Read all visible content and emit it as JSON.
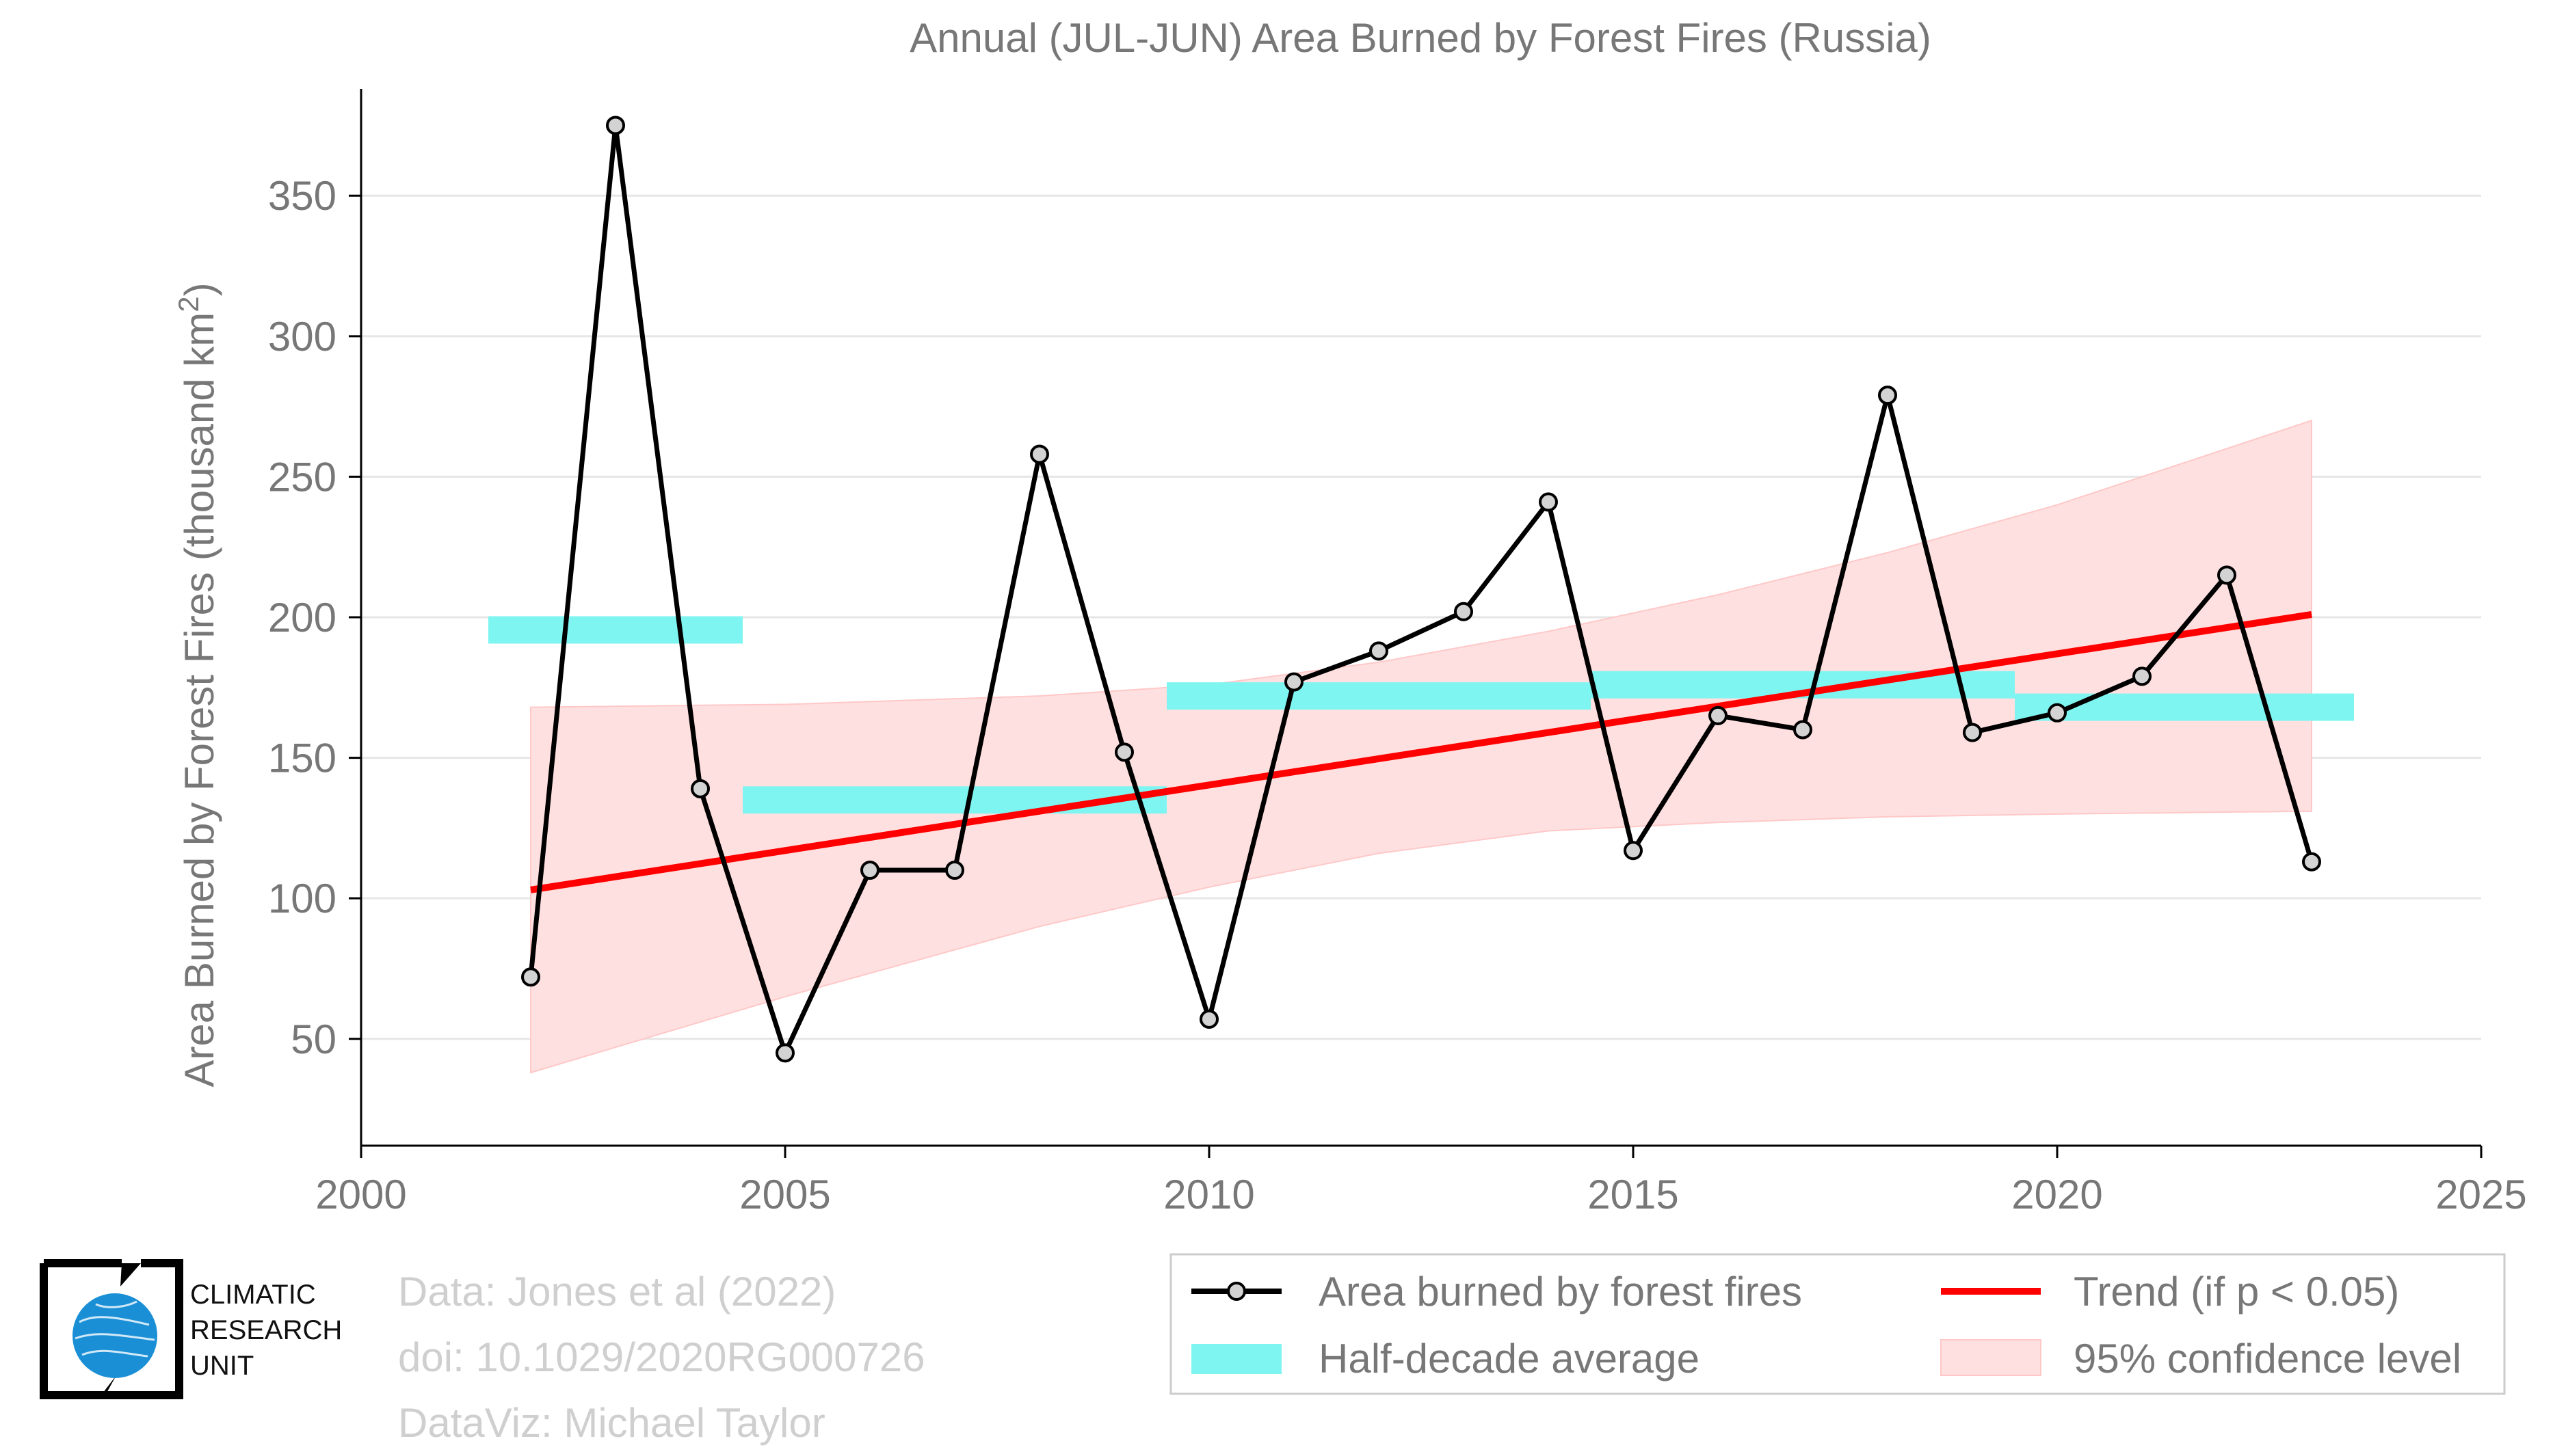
{
  "chart_data": {
    "type": "line",
    "title": "Annual (JUL-JUN) Area Burned by Forest Fires (Russia)",
    "xlabel": "",
    "ylabel": "Area Burned by Forest Fires (thousand km²)",
    "xlim": [
      2000,
      2025
    ],
    "ylim": [
      12,
      388
    ],
    "xticks": [
      2000,
      2005,
      2010,
      2015,
      2020,
      2025
    ],
    "yticks": [
      50,
      100,
      150,
      200,
      250,
      300,
      350
    ],
    "grid": "horizontal",
    "legend_position": "bottom-right",
    "series": [
      {
        "name": "Area burned by forest fires",
        "type": "line",
        "color": "#000000",
        "marker_fill": "#d3d3d3",
        "x": [
          2002,
          2003,
          2004,
          2005,
          2006,
          2007,
          2008,
          2009,
          2010,
          2011,
          2012,
          2013,
          2014,
          2015,
          2016,
          2017,
          2018,
          2019,
          2020,
          2021,
          2022,
          2023
        ],
        "y": [
          72,
          375,
          139,
          45,
          110,
          110,
          258,
          152,
          57,
          177,
          188,
          202,
          241,
          117,
          165,
          160,
          279,
          159,
          166,
          179,
          215,
          113
        ]
      },
      {
        "name": "Half-decade average",
        "type": "segments",
        "color": "#7ff5f1",
        "segments": [
          {
            "x0": 2001.5,
            "x1": 2004.5,
            "y": 195.5
          },
          {
            "x0": 2004.5,
            "x1": 2009.5,
            "y": 135
          },
          {
            "x0": 2009.5,
            "x1": 2014.5,
            "y": 172
          },
          {
            "x0": 2014.5,
            "x1": 2019.5,
            "y": 176
          },
          {
            "x0": 2019.5,
            "x1": 2023.5,
            "y": 168
          }
        ]
      },
      {
        "name": "Trend (if p < 0.05)",
        "type": "line",
        "color": "#ff0000",
        "x": [
          2002,
          2023
        ],
        "y": [
          103,
          201
        ]
      },
      {
        "name": "95% confidence level",
        "type": "area",
        "color": "#ffe0e0",
        "x": [
          2002,
          2005,
          2008,
          2010,
          2012,
          2014,
          2016,
          2018,
          2020,
          2023
        ],
        "upper": [
          168,
          169,
          172,
          176,
          184,
          195,
          208,
          223,
          240,
          270
        ],
        "lower": [
          38,
          65,
          90,
          104,
          116,
          124,
          127,
          129,
          130,
          131
        ]
      }
    ]
  },
  "legend": {
    "items": [
      {
        "label": "Area burned by forest fires"
      },
      {
        "label": "Trend (if p < 0.05)"
      },
      {
        "label": "Half-decade average"
      },
      {
        "label": "95% confidence level"
      }
    ]
  },
  "credits": {
    "line1": "Data: Jones et al (2022)",
    "line2": "doi: 10.1029/2020RG000726",
    "line3": "DataViz: Michael Taylor"
  },
  "logo": {
    "line1": "CLIMATIC",
    "line2": "RESEARCH",
    "line3": "UNIT"
  },
  "colors": {
    "axis_text": "#777777",
    "grid": "#e6e6e6",
    "credits_text": "#cfcfcf",
    "logo_blue": "#1a8fd6"
  }
}
